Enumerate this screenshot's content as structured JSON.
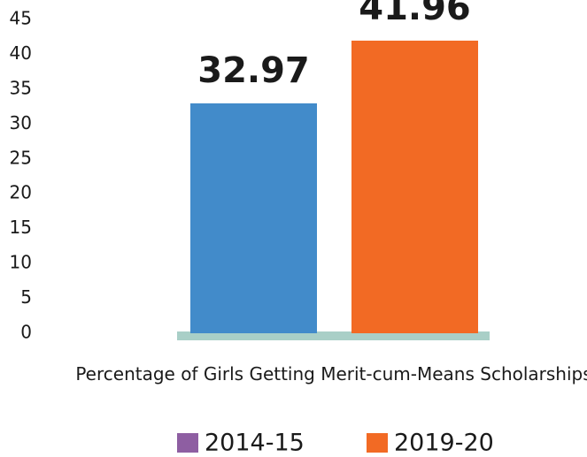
{
  "chart_data": {
    "type": "bar",
    "categories": [
      "Percentage of Girls Getting Merit-cum-Means Scholarships"
    ],
    "series": [
      {
        "name": "2014-15",
        "color": "#428bca",
        "legend_color": "#8e5ea2",
        "values": [
          32.97
        ]
      },
      {
        "name": "2019-20",
        "color": "#f26a24",
        "legend_color": "#f26a24",
        "values": [
          41.96
        ]
      }
    ],
    "ylim": [
      0,
      45
    ],
    "yticks": [
      0,
      5,
      10,
      15,
      20,
      25,
      30,
      35,
      40,
      45
    ],
    "grid": false
  }
}
